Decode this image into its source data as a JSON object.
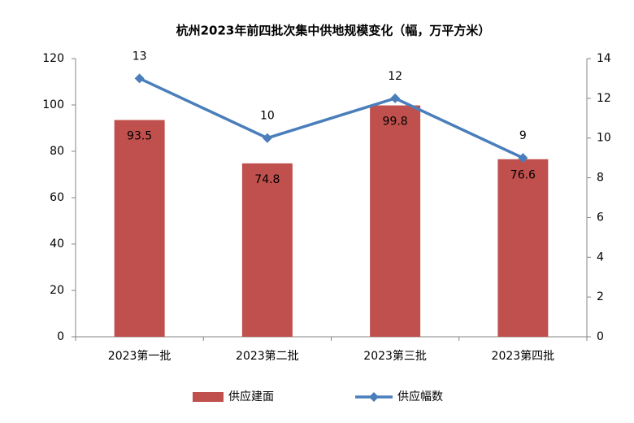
{
  "chart_data": {
    "type": "bar",
    "title": "杭州2023年前四批次集中供地规模变化（幅，万平方米）",
    "categories": [
      "2023第一批",
      "2023第二批",
      "2023第三批",
      "2023第四批"
    ],
    "series": [
      {
        "name": "供应建面",
        "type": "bar",
        "color": "#c0504d",
        "values": [
          93.5,
          74.8,
          99.8,
          76.6
        ]
      },
      {
        "name": "供应幅数",
        "type": "line",
        "axis": "y2",
        "color": "#4a7ebb",
        "values": [
          13,
          10,
          12,
          9
        ]
      }
    ],
    "ylim": [
      0,
      120
    ],
    "yticks": [
      0,
      20,
      40,
      60,
      80,
      100,
      120
    ],
    "y2lim": [
      0,
      14
    ],
    "y2ticks": [
      0,
      2,
      4,
      6,
      8,
      10,
      12,
      14
    ],
    "grid": false,
    "legend": "bottom"
  }
}
